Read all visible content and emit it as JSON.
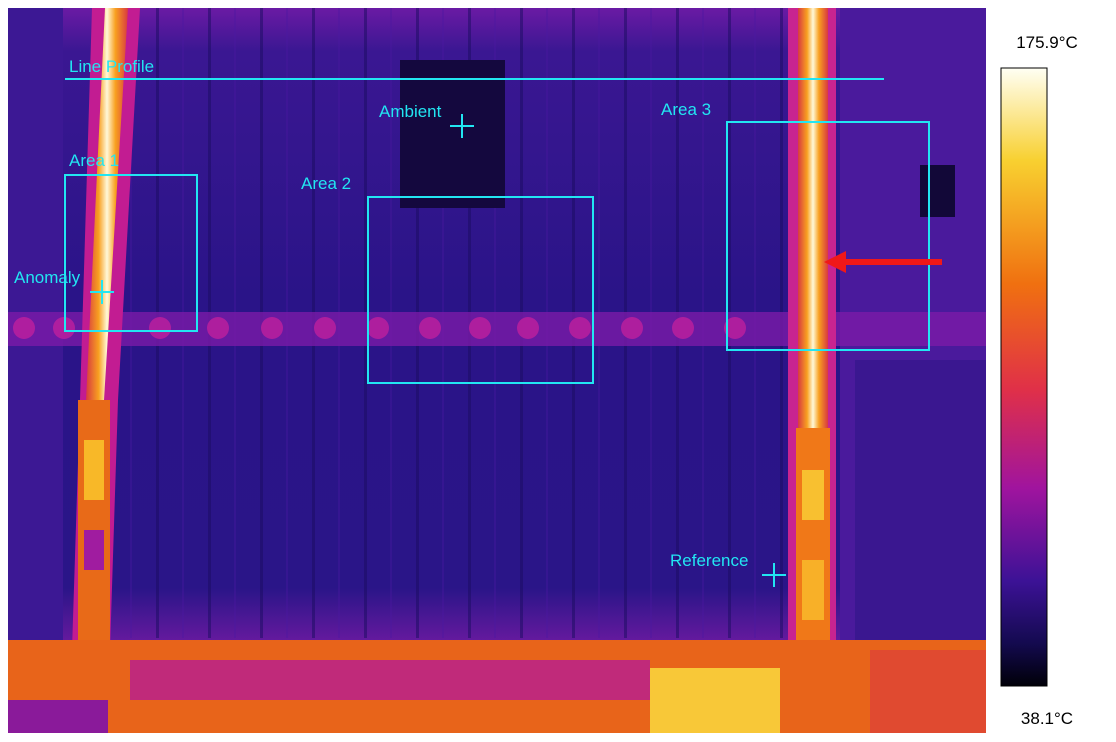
{
  "annotations": {
    "line_profile": "Line Profile",
    "area1": "Area 1",
    "area2": "Area 2",
    "area3": "Area 3",
    "ambient": "Ambient",
    "anomaly": "Anomaly",
    "reference": "Reference"
  },
  "scale": {
    "max": "175.9°C",
    "min": "38.1°C"
  }
}
